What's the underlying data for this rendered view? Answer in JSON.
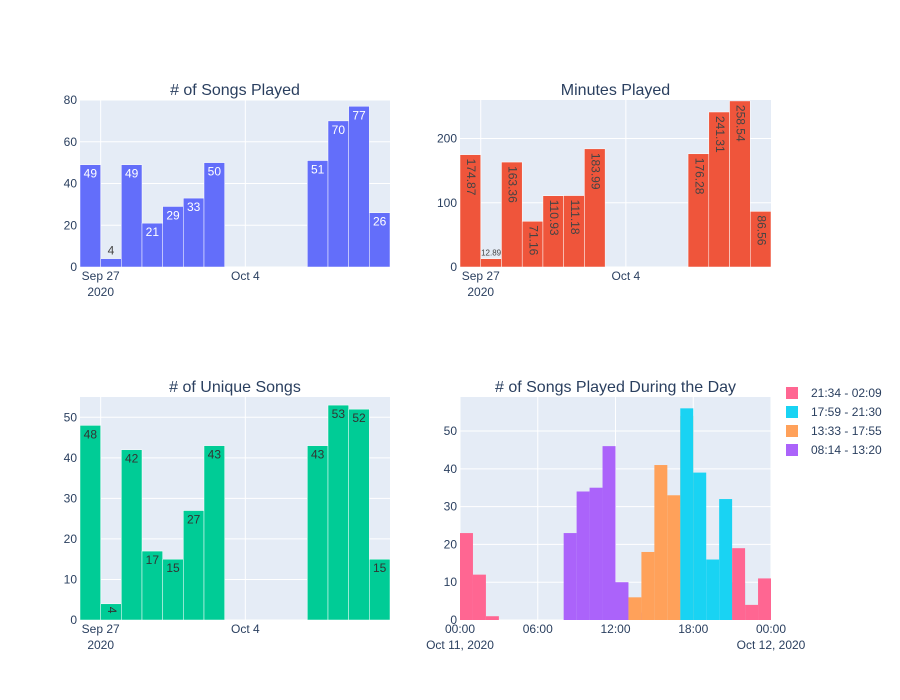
{
  "chart_data": [
    {
      "type": "bar",
      "title": "# of Songs Played",
      "color": "#636efa",
      "x_range": [
        "2020-09-26",
        "2020-10-11"
      ],
      "ylim": [
        0,
        80
      ],
      "yticks": [
        "0",
        "20",
        "40",
        "60",
        "80"
      ],
      "xticks": [
        {
          "date": "2020-09-27",
          "label": "Sep 27",
          "sub": "2020"
        },
        {
          "date": "2020-10-04",
          "label": "Oct 4",
          "sub": ""
        }
      ],
      "data_label_orientation": "horizontal",
      "bars": [
        {
          "date": "2020-09-26",
          "value": 49,
          "label": "49"
        },
        {
          "date": "2020-09-27",
          "value": 4,
          "label": "4"
        },
        {
          "date": "2020-09-28",
          "value": 49,
          "label": "49"
        },
        {
          "date": "2020-09-29",
          "value": 21,
          "label": "21"
        },
        {
          "date": "2020-09-30",
          "value": 29,
          "label": "29"
        },
        {
          "date": "2020-10-01",
          "value": 33,
          "label": "33"
        },
        {
          "date": "2020-10-02",
          "value": 50,
          "label": "50"
        },
        {
          "date": "2020-10-07",
          "value": 51,
          "label": "51"
        },
        {
          "date": "2020-10-08",
          "value": 70,
          "label": "70"
        },
        {
          "date": "2020-10-09",
          "value": 77,
          "label": "77"
        },
        {
          "date": "2020-10-10",
          "value": 26,
          "label": "26"
        }
      ]
    },
    {
      "type": "bar",
      "title": "Minutes Played",
      "color": "#ef553b",
      "x_range": [
        "2020-09-26",
        "2020-10-11"
      ],
      "ylim": [
        0,
        260
      ],
      "yticks": [
        "0",
        "100",
        "200"
      ],
      "ytick_values": [
        0,
        100,
        200
      ],
      "xticks": [
        {
          "date": "2020-09-27",
          "label": "Sep 27",
          "sub": "2020"
        },
        {
          "date": "2020-10-04",
          "label": "Oct 4",
          "sub": ""
        }
      ],
      "data_label_orientation": "vertical",
      "bars": [
        {
          "date": "2020-09-26",
          "value": 174.87,
          "label": "174.87"
        },
        {
          "date": "2020-09-27",
          "value": 12.89,
          "label": "12.89"
        },
        {
          "date": "2020-09-28",
          "value": 163.36,
          "label": "163.36"
        },
        {
          "date": "2020-09-29",
          "value": 71.16,
          "label": "71.16"
        },
        {
          "date": "2020-09-30",
          "value": 110.93,
          "label": "110.93"
        },
        {
          "date": "2020-10-01",
          "value": 111.18,
          "label": "111.18"
        },
        {
          "date": "2020-10-02",
          "value": 183.99,
          "label": "183.99"
        },
        {
          "date": "2020-10-07",
          "value": 176.28,
          "label": "176.28"
        },
        {
          "date": "2020-10-08",
          "value": 241.31,
          "label": "241.31"
        },
        {
          "date": "2020-10-09",
          "value": 258.54,
          "label": "258.54"
        },
        {
          "date": "2020-10-10",
          "value": 86.56,
          "label": "86.56"
        }
      ]
    },
    {
      "type": "bar",
      "title": "# of Unique Songs",
      "color": "#00cc96",
      "x_range": [
        "2020-09-26",
        "2020-10-11"
      ],
      "ylim": [
        0,
        55
      ],
      "yticks": [
        "0",
        "10",
        "20",
        "30",
        "40",
        "50"
      ],
      "ytick_values": [
        0,
        10,
        20,
        30,
        40,
        50
      ],
      "xticks": [
        {
          "date": "2020-09-27",
          "label": "Sep 27",
          "sub": "2020"
        },
        {
          "date": "2020-10-04",
          "label": "Oct 4",
          "sub": ""
        }
      ],
      "data_label_orientation": "horizontal",
      "bars": [
        {
          "date": "2020-09-26",
          "value": 48,
          "label": "48"
        },
        {
          "date": "2020-09-27",
          "value": 4,
          "label": "4"
        },
        {
          "date": "2020-09-28",
          "value": 42,
          "label": "42"
        },
        {
          "date": "2020-09-29",
          "value": 17,
          "label": "17"
        },
        {
          "date": "2020-09-30",
          "value": 15,
          "label": "15"
        },
        {
          "date": "2020-10-01",
          "value": 27,
          "label": "27"
        },
        {
          "date": "2020-10-02",
          "value": 43,
          "label": "43"
        },
        {
          "date": "2020-10-07",
          "value": 43,
          "label": "43"
        },
        {
          "date": "2020-10-08",
          "value": 53,
          "label": "53"
        },
        {
          "date": "2020-10-09",
          "value": 52,
          "label": "52"
        },
        {
          "date": "2020-10-10",
          "value": 15,
          "label": "15"
        }
      ]
    },
    {
      "type": "bar",
      "title": "# of Songs Played During the Day",
      "x_range": [
        "2020-10-11 00:00",
        "2020-10-12 00:00"
      ],
      "ylim": [
        0,
        59
      ],
      "yticks": [
        "0",
        "10",
        "20",
        "30",
        "40",
        "50"
      ],
      "ytick_values": [
        0,
        10,
        20,
        30,
        40,
        50
      ],
      "xticks": [
        {
          "hour": 0,
          "label": "00:00",
          "sub": "Oct 11, 2020"
        },
        {
          "hour": 6,
          "label": "06:00",
          "sub": ""
        },
        {
          "hour": 12,
          "label": "12:00",
          "sub": ""
        },
        {
          "hour": 18,
          "label": "18:00",
          "sub": ""
        },
        {
          "hour": 24,
          "label": "00:00",
          "sub": "Oct 12, 2020"
        }
      ],
      "bin_hours": 1,
      "legend_position": "right",
      "series": [
        {
          "name": "21:34 - 02:09",
          "color": "#ff6692",
          "bins": [
            {
              "hour": 0,
              "value": 23
            },
            {
              "hour": 1,
              "value": 12
            },
            {
              "hour": 2,
              "value": 1
            },
            {
              "hour": 21,
              "value": 19
            },
            {
              "hour": 22,
              "value": 4
            },
            {
              "hour": 23,
              "value": 11
            }
          ]
        },
        {
          "name": "17:59 - 21:30",
          "color": "#19d3f3",
          "bins": [
            {
              "hour": 17,
              "value": 56
            },
            {
              "hour": 18,
              "value": 39
            },
            {
              "hour": 19,
              "value": 16
            },
            {
              "hour": 20,
              "value": 32
            },
            {
              "hour": 21,
              "value": 10
            }
          ]
        },
        {
          "name": "13:33 - 17:55",
          "color": "#ffa15a",
          "bins": [
            {
              "hour": 13,
              "value": 6
            },
            {
              "hour": 14,
              "value": 18
            },
            {
              "hour": 15,
              "value": 41
            },
            {
              "hour": 16,
              "value": 33
            },
            {
              "hour": 17,
              "value": 54
            }
          ]
        },
        {
          "name": "08:14 - 13:20",
          "color": "#ab63fa",
          "bins": [
            {
              "hour": 8,
              "value": 23
            },
            {
              "hour": 9,
              "value": 34
            },
            {
              "hour": 10,
              "value": 35
            },
            {
              "hour": 11,
              "value": 46
            },
            {
              "hour": 12,
              "value": 10
            },
            {
              "hour": 13,
              "value": 2
            }
          ]
        }
      ]
    }
  ]
}
